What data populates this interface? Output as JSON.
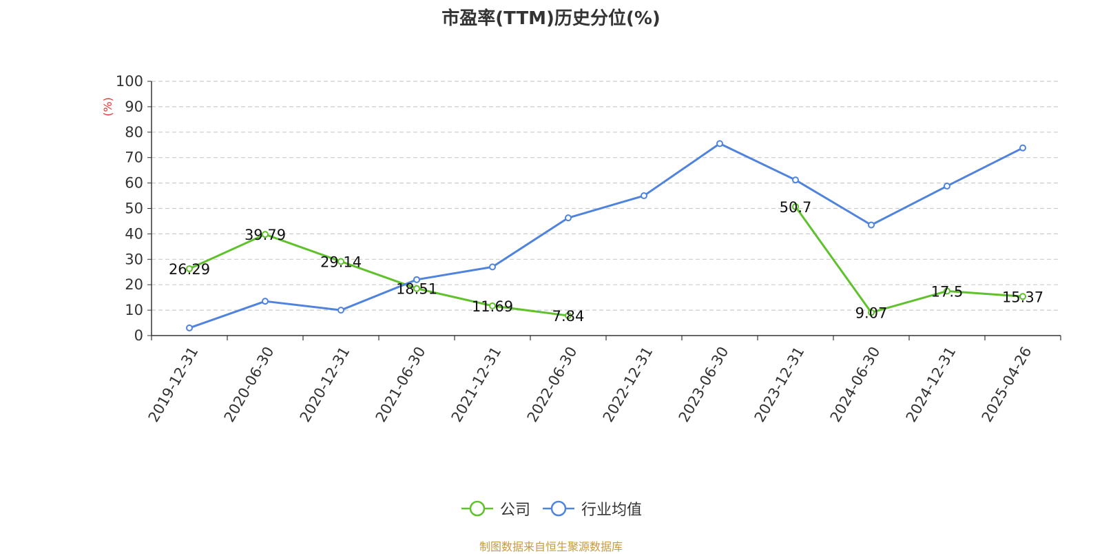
{
  "chart_data": {
    "type": "line",
    "title": "市盈率(TTM)历史分位(%)",
    "ylabel": "(%)",
    "xlabel": "",
    "ylim": [
      0,
      100
    ],
    "yticks": [
      0,
      10,
      20,
      30,
      40,
      50,
      60,
      70,
      80,
      90,
      100
    ],
    "grid": true,
    "legend_position": "bottom",
    "categories": [
      "2019-12-31",
      "2020-06-30",
      "2020-12-31",
      "2021-06-30",
      "2021-12-31",
      "2022-06-30",
      "2022-12-31",
      "2023-06-30",
      "2023-12-31",
      "2024-06-30",
      "2024-12-31",
      "2025-04-26"
    ],
    "series": [
      {
        "name": "公司",
        "color": "#5fc12c",
        "values": [
          26.29,
          39.79,
          29.14,
          18.51,
          11.69,
          7.84,
          null,
          null,
          50.7,
          9.07,
          17.5,
          15.37
        ],
        "labels": [
          "26.29",
          "39.79",
          "29.14",
          "18.51",
          "11.69",
          "7.84",
          "",
          "",
          "50.7",
          "9.07",
          "17.5",
          "15.37"
        ]
      },
      {
        "name": "行业均值",
        "color": "#4f83dc",
        "values": [
          3,
          13.5,
          10,
          22,
          27,
          46.3,
          55,
          75.5,
          61.2,
          43.5,
          58.8,
          73.8
        ]
      }
    ]
  },
  "source_note": "制图数据来自恒生聚源数据库",
  "colors": {
    "source_note": "#c89a3c",
    "ylabel": "#e0332e"
  }
}
